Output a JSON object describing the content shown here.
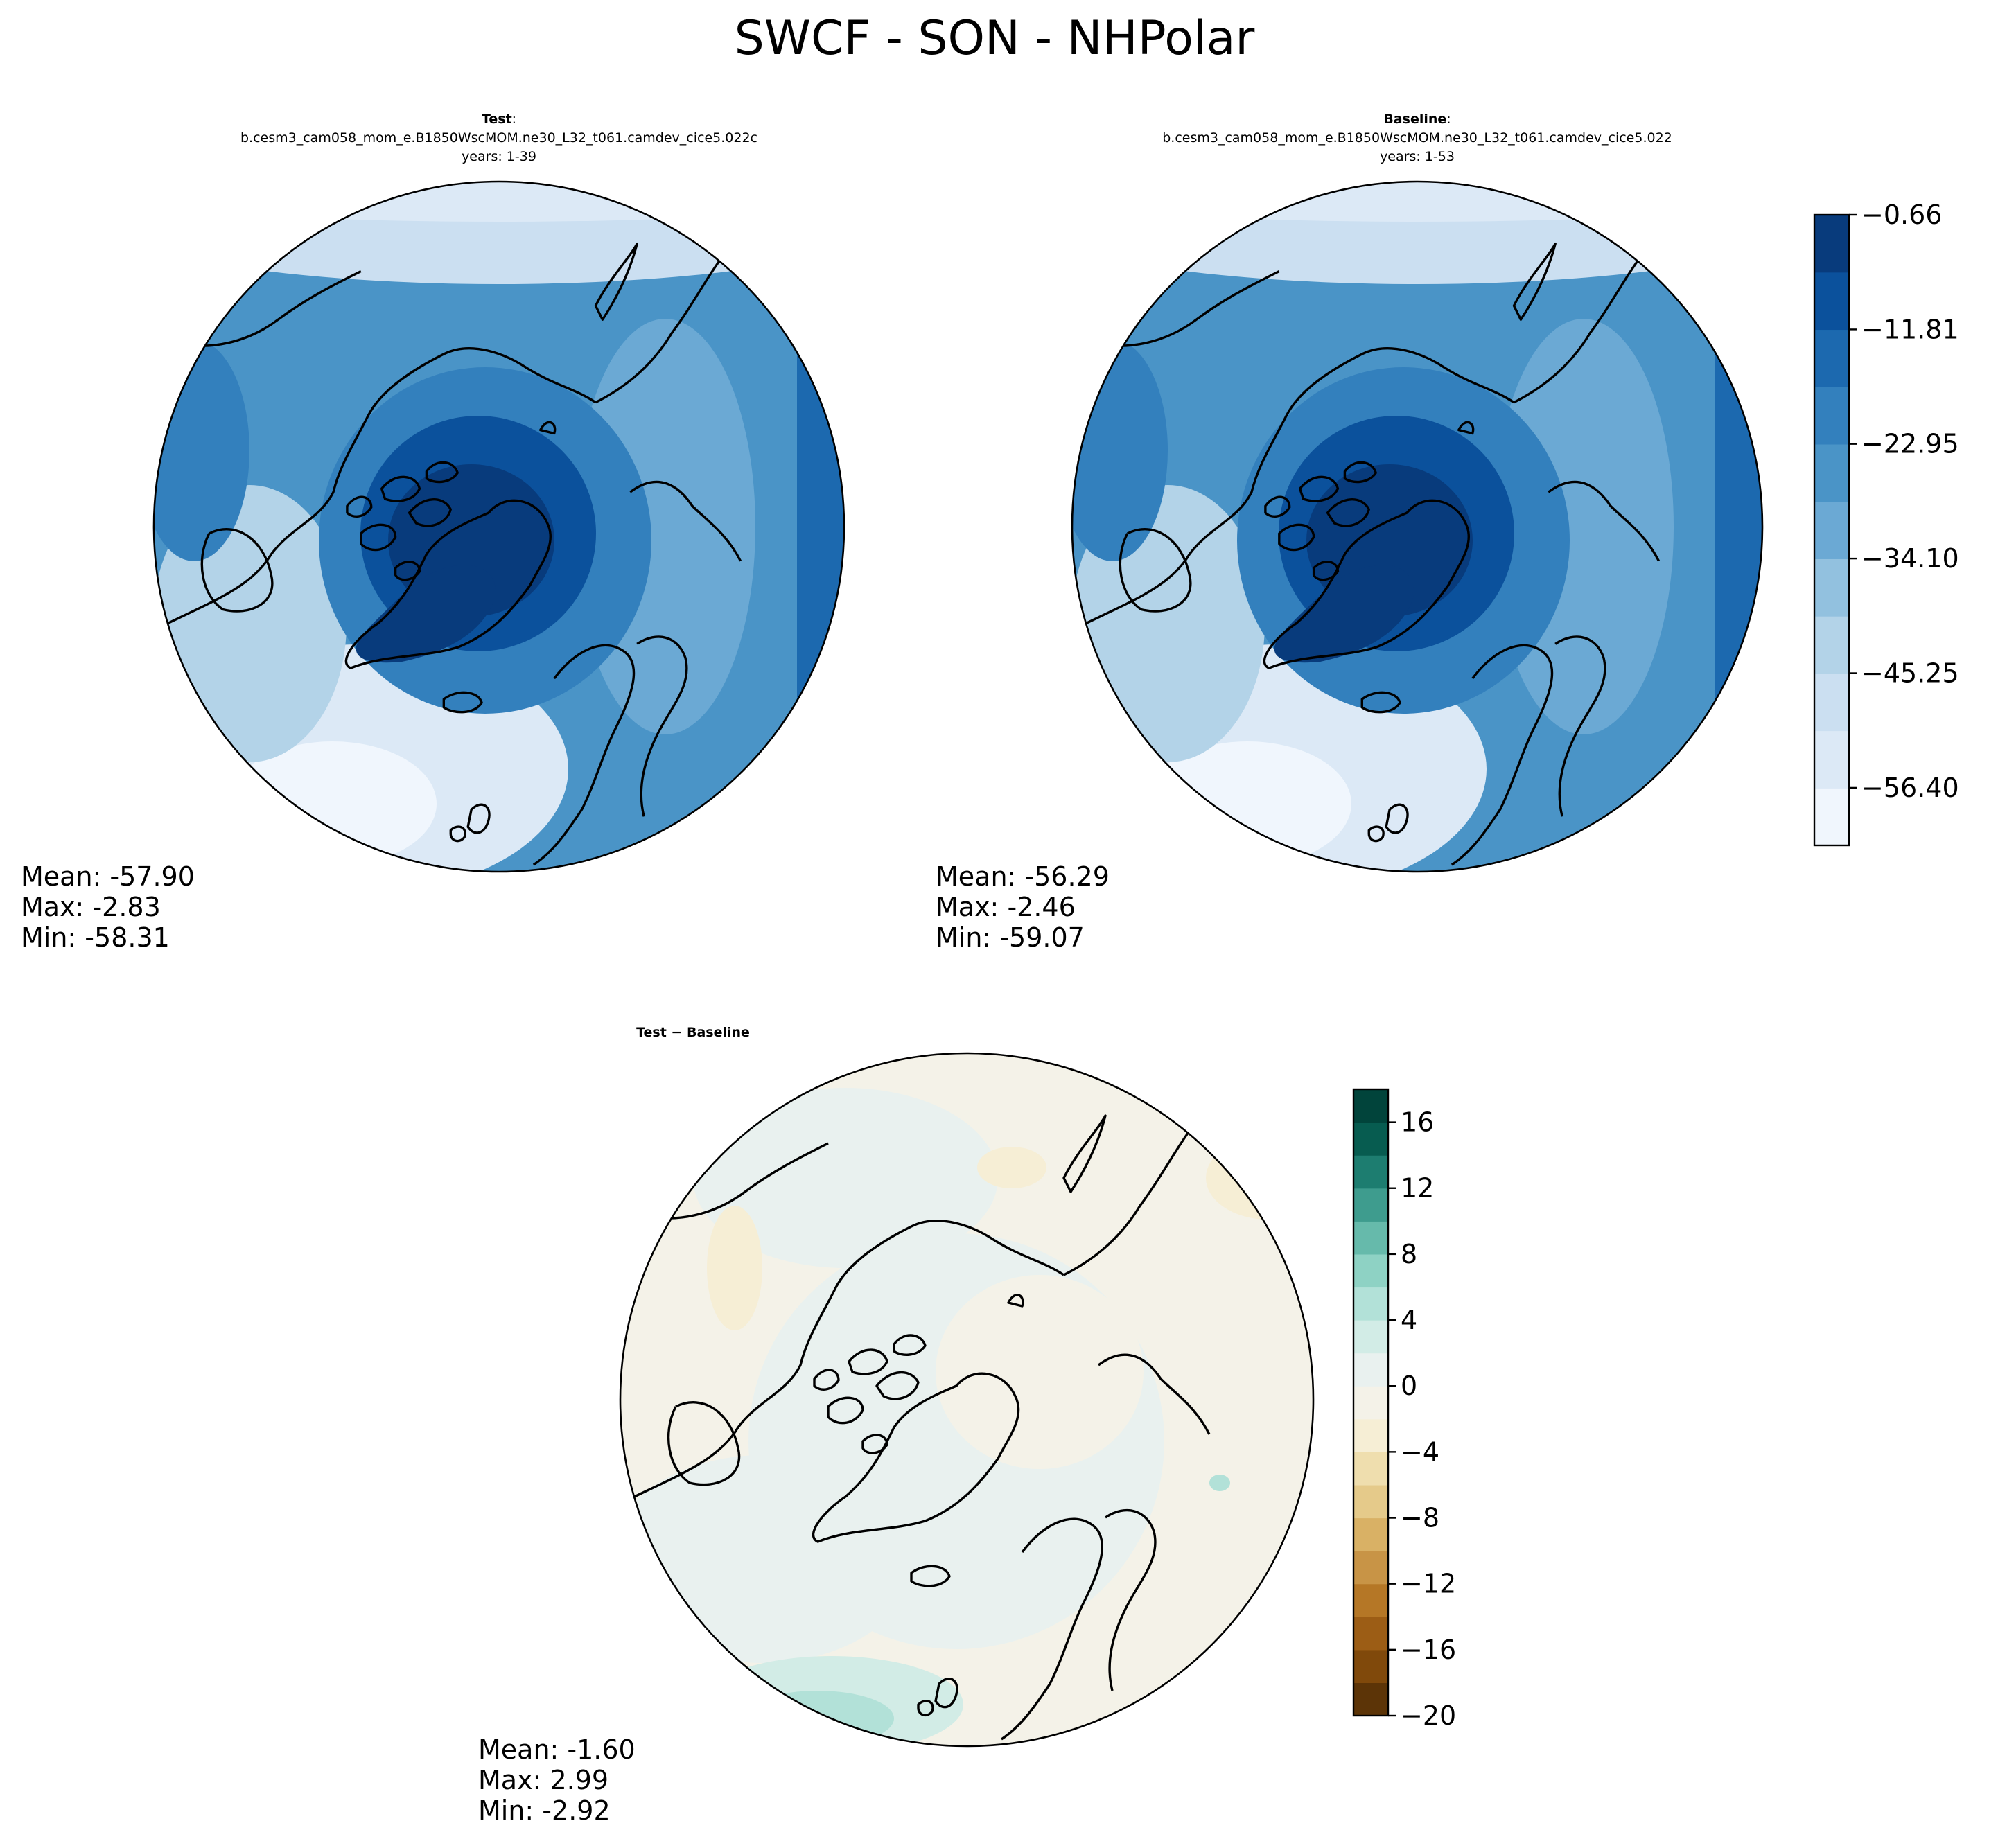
{
  "figure": {
    "title": "SWCF - SON - NHPolar"
  },
  "panels": [
    {
      "id": "test",
      "title_bold": "Test",
      "title_rest": ":",
      "case": "b.cesm3_cam058_mom_e.B1850WscMOM.ne30_L32_t061.camdev_cice5.022c",
      "years": "years: 1-39",
      "stats": {
        "mean": "Mean: -57.90",
        "max": "Max: -2.83",
        "min": "Min: -58.31"
      },
      "field": "absolute"
    },
    {
      "id": "baseline",
      "title_bold": "Baseline",
      "title_rest": ":",
      "case": "b.cesm3_cam058_mom_e.B1850WscMOM.ne30_L32_t061.camdev_cice5.022",
      "years": "years: 1-53",
      "stats": {
        "mean": "Mean: -56.29",
        "max": "Max: -2.46",
        "min": "Min: -59.07"
      },
      "field": "absolute"
    },
    {
      "id": "diff",
      "title_bold": "Test − Baseline",
      "title_rest": "",
      "case": "",
      "years": "",
      "stats": {
        "mean": "Mean: -1.60",
        "max": "Max:  2.99",
        "min": "Min: -2.92"
      },
      "field": "difference"
    }
  ],
  "colorbars": {
    "absolute": {
      "colormap": "Blues",
      "range": [
        -62.0,
        -0.66
      ],
      "tick_values": [
        -0.66,
        -11.81,
        -22.95,
        -34.1,
        -45.25,
        -56.4
      ],
      "tick_labels": [
        "−0.66",
        "−11.81",
        "−22.95",
        "−34.10",
        "−45.25",
        "−56.40"
      ],
      "colors": [
        "#f0f6fd",
        "#dce9f6",
        "#cbdff1",
        "#b3d3e8",
        "#92c1df",
        "#6ba9d4",
        "#4a94c7",
        "#3380bd",
        "#1c69af",
        "#0b519c",
        "#083b7c"
      ]
    },
    "difference": {
      "colormap": "BrBG",
      "range": [
        -20,
        18
      ],
      "tick_values": [
        -20,
        -16,
        -12,
        -8,
        -4,
        0,
        4,
        8,
        12,
        16
      ],
      "tick_labels": [
        "−20",
        "−16",
        "−12",
        "−8",
        "−4",
        "0",
        "4",
        "8",
        "12",
        "16"
      ],
      "colors": [
        "#5c3407",
        "#80490b",
        "#9c5d15",
        "#b57726",
        "#c89446",
        "#d9b165",
        "#e5ca8a",
        "#efdeae",
        "#f6eed5",
        "#f4f2e8",
        "#e9f1ef",
        "#d2ece6",
        "#b2e1d8",
        "#8ed2c4",
        "#66baab",
        "#3e9c8e",
        "#1d7d70",
        "#075c50",
        "#01443b"
      ]
    }
  }
}
